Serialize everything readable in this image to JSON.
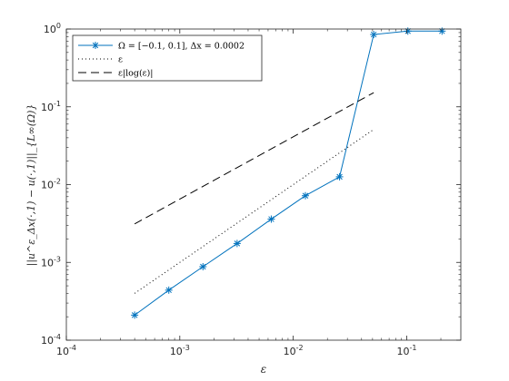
{
  "chart_data": {
    "type": "line",
    "x_scale": "log",
    "y_scale": "log",
    "xlim": [
      0.0001,
      0.3
    ],
    "ylim": [
      0.0001,
      1
    ],
    "x_ticks": [
      {
        "value": 0.0001,
        "base": "10",
        "exp": "-4"
      },
      {
        "value": 0.001,
        "base": "10",
        "exp": "-3"
      },
      {
        "value": 0.01,
        "base": "10",
        "exp": "-2"
      },
      {
        "value": 0.1,
        "base": "10",
        "exp": "-1"
      }
    ],
    "y_ticks": [
      {
        "value": 0.0001,
        "base": "10",
        "exp": "-4"
      },
      {
        "value": 0.001,
        "base": "10",
        "exp": "-3"
      },
      {
        "value": 0.01,
        "base": "10",
        "exp": "-2"
      },
      {
        "value": 0.1,
        "base": "10",
        "exp": "-1"
      },
      {
        "value": 1,
        "base": "10",
        "exp": "0"
      }
    ],
    "xlabel": "ε",
    "ylabel": "||u^ε_Δx(·,1) − u(·,1)||_{L∞(Ω)}",
    "grid": false,
    "legend_position": "top-left",
    "series": [
      {
        "name": "Ω = [−0.1, 0.1],  Δx = 0.0002",
        "style": "solid-marker-asterisk",
        "color": "#0072BD",
        "x": [
          0.0004,
          0.0008,
          0.0016,
          0.0032,
          0.0064,
          0.0128,
          0.0256,
          0.0512,
          0.1024,
          0.2048
        ],
        "y": [
          0.00021,
          0.00044,
          0.00088,
          0.00175,
          0.0036,
          0.0072,
          0.0126,
          0.85,
          0.94,
          0.94
        ]
      },
      {
        "name": "ε",
        "style": "dotted",
        "color": "#000000",
        "x": [
          0.0004,
          0.0512
        ],
        "y": [
          0.0004,
          0.0512
        ]
      },
      {
        "name": "ε|log(ε)|",
        "style": "dashed",
        "color": "#000000",
        "x": [
          0.0004,
          0.0512
        ],
        "y": [
          0.00313,
          0.152
        ]
      }
    ]
  }
}
